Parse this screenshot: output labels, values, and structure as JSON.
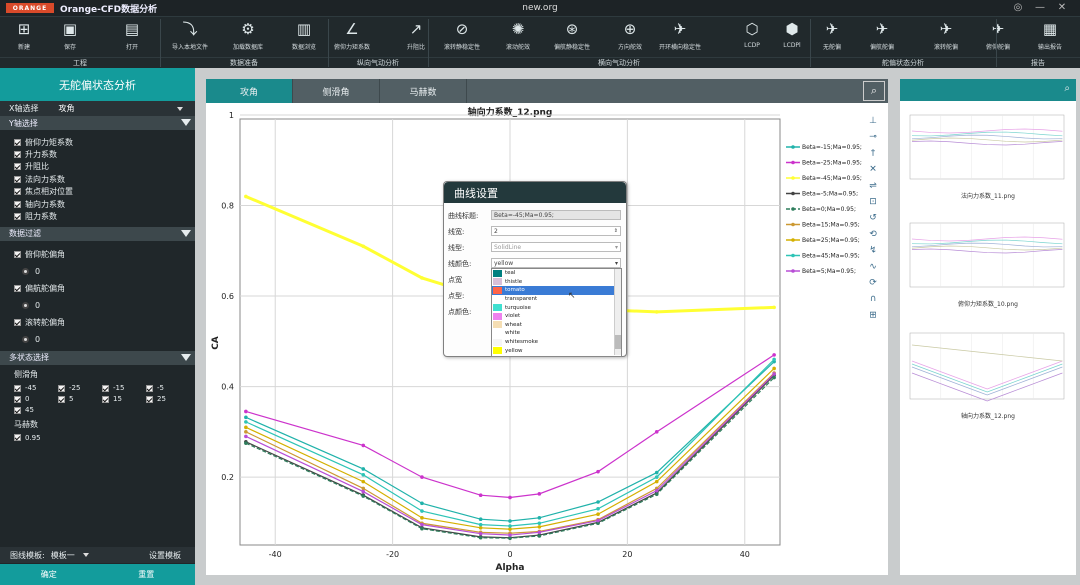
{
  "app": {
    "logo_text": "ORANGE",
    "title": "Orange-CFD数据分析",
    "url": "new.org"
  },
  "ribbon": {
    "buttons": [
      {
        "label": "新建",
        "icon": "new-file-icon"
      },
      {
        "label": "保存",
        "icon": "save-icon"
      },
      {
        "label": "打开",
        "icon": "open-folder-icon"
      },
      {
        "label": "导入本地文件",
        "icon": "import-icon"
      },
      {
        "label": "加载数据库",
        "icon": "database-icon"
      },
      {
        "label": "数据浏览",
        "icon": "bar-chart-icon"
      },
      {
        "label": "俯仰力矩系数",
        "icon": "pitch-moment-icon"
      },
      {
        "label": "升阻比",
        "icon": "lift-drag-icon"
      },
      {
        "label": "滚转静稳定性",
        "icon": "roll-stability-icon"
      },
      {
        "label": "滚动舵效",
        "icon": "roll-control-icon"
      },
      {
        "label": "偏航静稳定性",
        "icon": "yaw-stability-icon"
      },
      {
        "label": "方向舵效",
        "icon": "rudder-icon"
      },
      {
        "label": "开环横向稳定性",
        "icon": "lateral-stability-icon"
      },
      {
        "label": "LCDP",
        "icon": "lcdp-icon"
      },
      {
        "label": "LCDPl",
        "icon": "lcdpl-icon"
      },
      {
        "label": "无舵偏",
        "icon": "no-deflection-icon"
      },
      {
        "label": "偏航舵偏",
        "icon": "yaw-deflection-icon"
      },
      {
        "label": "滚转舵偏",
        "icon": "roll-deflection-icon"
      },
      {
        "label": "俯仰舵偏",
        "icon": "pitch-deflection-icon"
      },
      {
        "label": "输出报告",
        "icon": "report-icon"
      }
    ],
    "groups": [
      "工程",
      "数据准备",
      "纵向气动分析",
      "横向气动分析",
      "舵偏状态分析",
      "报告"
    ]
  },
  "left": {
    "header": "无舵偏状态分析",
    "x_label": "X轴选择",
    "x_value": "攻角",
    "y_section": "Y轴选择",
    "y_items": [
      {
        "label": "俯仰力矩系数",
        "checked": true
      },
      {
        "label": "升力系数",
        "checked": true
      },
      {
        "label": "升阻比",
        "checked": true
      },
      {
        "label": "法向力系数",
        "checked": true
      },
      {
        "label": "焦点相对位置",
        "checked": true
      },
      {
        "label": "轴向力系数",
        "checked": true
      },
      {
        "label": "阻力系数",
        "checked": true
      }
    ],
    "filter_section": "数据过滤",
    "filters": [
      {
        "label": "俯仰舵偏角",
        "value": "0"
      },
      {
        "label": "偏航舵偏角",
        "value": "0"
      },
      {
        "label": "滚转舵偏角",
        "value": "0"
      }
    ],
    "multi_section": "多状态选择",
    "beta_label": "侧滑角",
    "betas": [
      "-45",
      "-25",
      "-15",
      "-5",
      "0",
      "5",
      "15",
      "25",
      "45"
    ],
    "mach_label": "马赫数",
    "machs": [
      "0.95"
    ],
    "template_label": "图线模板:",
    "template_value": "模板一",
    "template_set": "设置模板",
    "confirm": "确定",
    "reset": "重置"
  },
  "tabs": [
    "攻角",
    "侧滑角",
    "马赫数"
  ],
  "chart_data": {
    "type": "line",
    "title": "轴向力系数_12.png",
    "xlabel": "Alpha",
    "ylabel": "CA",
    "xlim": [
      -46,
      46
    ],
    "ylim": [
      0.05,
      1.0
    ],
    "xticks": [
      -40,
      -20,
      0,
      20,
      40
    ],
    "yticks": [
      0.2,
      0.4,
      0.6,
      0.8,
      1
    ],
    "x": [
      -45,
      -25,
      -15,
      -5,
      0,
      5,
      15,
      25,
      45
    ],
    "series": [
      {
        "name": "Beta=-15;Ma=0.95;",
        "color": "#20b2aa",
        "values": [
          0.332,
          0.218,
          0.142,
          0.107,
          0.103,
          0.11,
          0.145,
          0.21,
          0.455
        ]
      },
      {
        "name": "Beta=-25;Ma=0.95;",
        "color": "#cc33cc",
        "values": [
          0.345,
          0.27,
          0.2,
          0.16,
          0.155,
          0.163,
          0.212,
          0.3,
          0.47
        ]
      },
      {
        "name": "Beta=-45;Ma=0.95;",
        "color": "#ffff33",
        "values": [
          0.82,
          0.71,
          0.64,
          0.6,
          0.59,
          0.58,
          0.57,
          0.565,
          0.575
        ]
      },
      {
        "name": "Beta=-5;Ma=0.95;",
        "color": "#444444",
        "values": [
          0.278,
          0.16,
          0.088,
          0.068,
          0.066,
          0.072,
          0.1,
          0.165,
          0.425
        ]
      },
      {
        "name": "Beta=0;Ma=0.95;",
        "color": "#2e7d5c",
        "values": [
          0.275,
          0.158,
          0.086,
          0.066,
          0.065,
          0.07,
          0.098,
          0.162,
          0.42
        ]
      },
      {
        "name": "Beta=15;Ma=0.95;",
        "color": "#cc9933",
        "values": [
          0.3,
          0.175,
          0.098,
          0.078,
          0.076,
          0.08,
          0.106,
          0.175,
          0.43
        ]
      },
      {
        "name": "Beta=25;Ma=0.95;",
        "color": "#d4b000",
        "values": [
          0.31,
          0.19,
          0.11,
          0.088,
          0.085,
          0.09,
          0.118,
          0.19,
          0.44
        ]
      },
      {
        "name": "Beta=45;Ma=0.95;",
        "color": "#2ec4b6",
        "values": [
          0.322,
          0.205,
          0.125,
          0.095,
          0.092,
          0.098,
          0.13,
          0.2,
          0.46
        ]
      },
      {
        "name": "Beta=5;Ma=0.95;",
        "color": "#b84dd6",
        "values": [
          0.29,
          0.168,
          0.095,
          0.075,
          0.072,
          0.078,
          0.104,
          0.17,
          0.428
        ]
      }
    ]
  },
  "dialog": {
    "title": "曲线设置",
    "label_title": "曲线标题:",
    "title_value": "Beta=-45;Ma=0.95;",
    "label_width": "线宽:",
    "width_value": "2",
    "label_style": "线型:",
    "style_value": "SolidLine",
    "label_color": "线颜色:",
    "color_value": "yellow",
    "label_pwidth": "点宽",
    "label_point": "点型:",
    "label_pcolor": "点颜色:",
    "colors": [
      {
        "name": "teal",
        "hex": "#008080"
      },
      {
        "name": "thistle",
        "hex": "#d8bfd8"
      },
      {
        "name": "tomato",
        "hex": "#ff6347"
      },
      {
        "name": "transparent",
        "hex": "#ffffff"
      },
      {
        "name": "turquoise",
        "hex": "#40e0d0"
      },
      {
        "name": "violet",
        "hex": "#ee82ee"
      },
      {
        "name": "wheat",
        "hex": "#f5deb3"
      },
      {
        "name": "white",
        "hex": "#ffffff"
      },
      {
        "name": "whitesmoke",
        "hex": "#f5f5f5"
      },
      {
        "name": "yellow",
        "hex": "#ffff00"
      }
    ],
    "selected_color": "tomato"
  },
  "thumbs": [
    {
      "caption": "法向力系数_11.png"
    },
    {
      "caption": "俯仰力矩系数_10.png"
    },
    {
      "caption": "轴向力系数_12.png"
    }
  ]
}
